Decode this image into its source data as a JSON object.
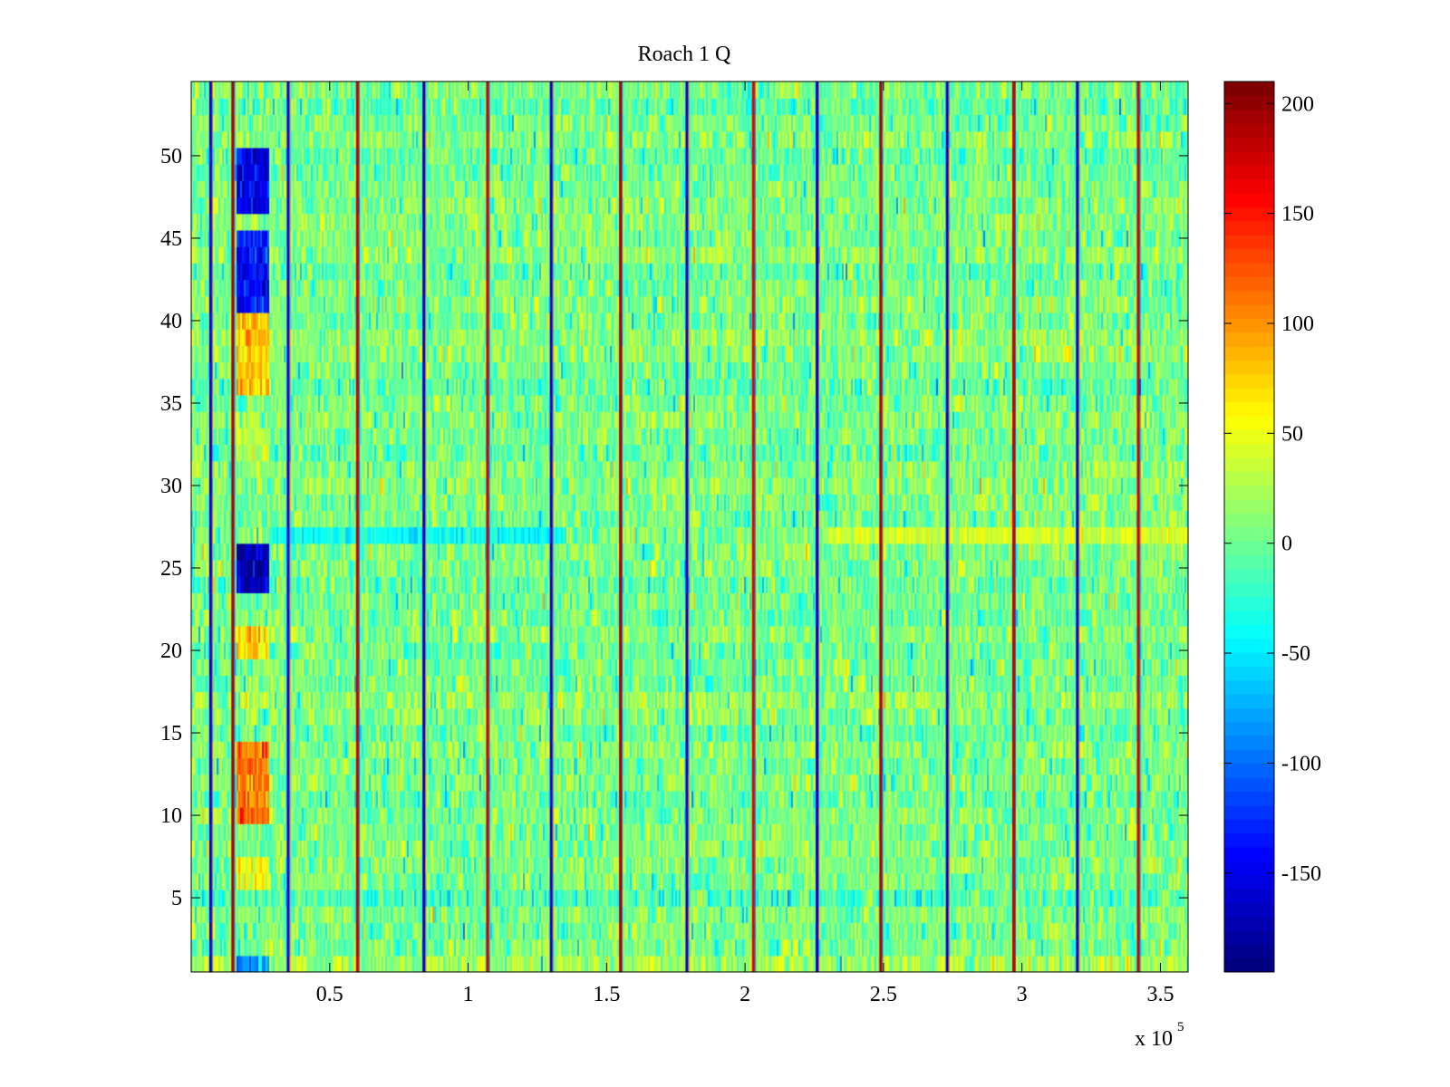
{
  "chart_data": {
    "type": "heatmap",
    "title": "Roach 1 Q",
    "xlabel": "",
    "ylabel": "",
    "x_multiplier_label": {
      "base": "x 10",
      "exponent": "5"
    },
    "xlim": [
      0,
      3.6
    ],
    "ylim": [
      0.5,
      54.5
    ],
    "x_ticks": [
      0.5,
      1,
      1.5,
      2,
      2.5,
      3,
      3.5
    ],
    "x_tick_labels": [
      "0.5",
      "1",
      "1.5",
      "2",
      "2.5",
      "3",
      "3.5"
    ],
    "y_ticks": [
      5,
      10,
      15,
      20,
      25,
      30,
      35,
      40,
      45,
      50
    ],
    "y_tick_labels": [
      "5",
      "10",
      "15",
      "20",
      "25",
      "30",
      "35",
      "40",
      "45",
      "50"
    ],
    "rows": 54,
    "colormap": "jet",
    "clim": [
      -195,
      210
    ],
    "colorbar_ticks": [
      200,
      150,
      100,
      50,
      0,
      -50,
      -100,
      -150
    ],
    "colorbar_tick_labels": [
      "200",
      "150",
      "100",
      "50",
      "0",
      "-50",
      "-100",
      "-150"
    ],
    "background_value_mean": 5,
    "background_value_spread": 25,
    "vertical_stripes": [
      {
        "x": 0.07,
        "value": -160
      },
      {
        "x": 0.15,
        "value": 190
      },
      {
        "x": 0.35,
        "value": -150
      },
      {
        "x": 0.6,
        "value": 180
      },
      {
        "x": 0.84,
        "value": -160
      },
      {
        "x": 1.07,
        "value": 180
      },
      {
        "x": 1.3,
        "value": -160
      },
      {
        "x": 1.55,
        "value": 190
      },
      {
        "x": 1.79,
        "value": -160
      },
      {
        "x": 2.03,
        "value": 170
      },
      {
        "x": 2.26,
        "value": -160
      },
      {
        "x": 2.49,
        "value": 190
      },
      {
        "x": 2.73,
        "value": -160
      },
      {
        "x": 2.97,
        "value": 180
      },
      {
        "x": 3.2,
        "value": -160
      },
      {
        "x": 3.42,
        "value": 180
      }
    ],
    "highlight_blocks": [
      {
        "x0": 0.17,
        "x1": 0.28,
        "row0": 47,
        "row1": 50,
        "value": -150
      },
      {
        "x0": 0.17,
        "x1": 0.28,
        "row0": 41,
        "row1": 45,
        "value": -140
      },
      {
        "x0": 0.17,
        "x1": 0.28,
        "row0": 36,
        "row1": 40,
        "value": 80
      },
      {
        "x0": 0.17,
        "x1": 0.28,
        "row0": 32,
        "row1": 33,
        "value": 40
      },
      {
        "x0": 0.17,
        "x1": 0.28,
        "row0": 24,
        "row1": 26,
        "value": -170
      },
      {
        "x0": 0.17,
        "x1": 0.28,
        "row0": 20,
        "row1": 21,
        "value": 80
      },
      {
        "x0": 0.17,
        "x1": 0.28,
        "row0": 10,
        "row1": 14,
        "value": 110
      },
      {
        "x0": 0.17,
        "x1": 0.28,
        "row0": 6,
        "row1": 7,
        "value": 60
      },
      {
        "x0": 0.17,
        "x1": 0.28,
        "row0": 1,
        "row1": 1,
        "value": -80
      }
    ],
    "highlight_rows": [
      {
        "row": 27,
        "x0": 2.3,
        "x1": 3.6,
        "value": 40
      },
      {
        "row": 27,
        "x0": 0.3,
        "x1": 1.35,
        "value": -40
      }
    ]
  }
}
